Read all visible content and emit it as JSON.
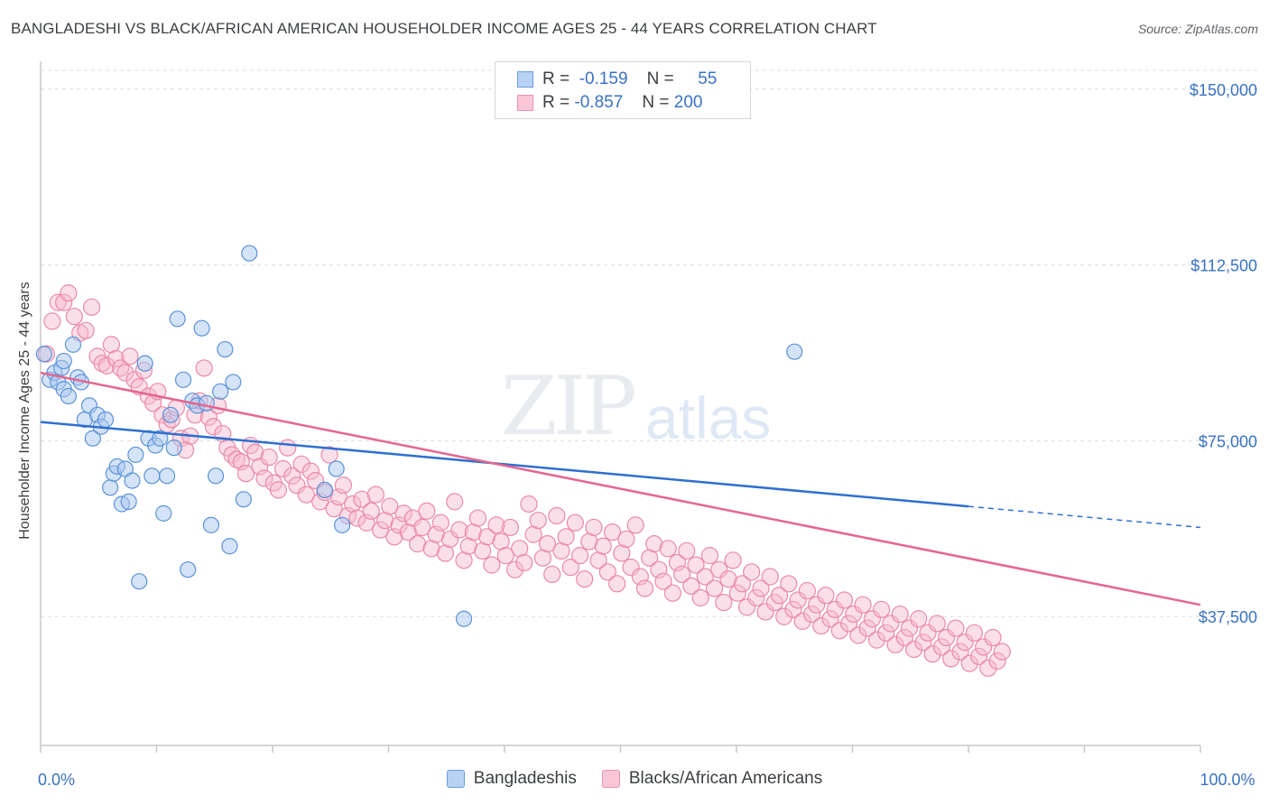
{
  "title": "BANGLADESHI VS BLACK/AFRICAN AMERICAN HOUSEHOLDER INCOME AGES 25 - 44 YEARS CORRELATION CHART",
  "source": "Source: ZipAtlas.com",
  "watermark": {
    "zip": "ZIP",
    "atlas": "atlas"
  },
  "legend_top": {
    "rows": [
      {
        "r_label": "R =",
        "r_value": "-0.159",
        "n_label": "N =",
        "n_value": "55"
      },
      {
        "r_label": "R =",
        "r_value": "-0.857",
        "n_label": "N =",
        "n_value": "200"
      }
    ]
  },
  "legend_bottom": [
    "Bangladeshis",
    "Blacks/African Americans"
  ],
  "colors": {
    "blue_fill": "#a9c8f0",
    "blue_stroke": "#5b93d8",
    "blue_line": "#2f6fd0",
    "pink_fill": "#f7b8cc",
    "pink_stroke": "#e989a9",
    "pink_line": "#e5658f",
    "tick_text": "#3a72c4",
    "grid": "#dcdcdc"
  },
  "chart_data": {
    "type": "scatter",
    "title": "BANGLADESHI VS BLACK/AFRICAN AMERICAN HOUSEHOLDER INCOME AGES 25 - 44 YEARS CORRELATION CHART",
    "xlabel": "",
    "ylabel": "Householder Income Ages 25 - 44 years",
    "xlim": [
      0,
      100
    ],
    "ylim": [
      10000,
      154000
    ],
    "x_tick_labels": [
      {
        "value": 0,
        "label": "0.0%"
      },
      {
        "value": 100,
        "label": "100.0%"
      }
    ],
    "y_ticks": [
      {
        "value": 150000,
        "label": "$150,000"
      },
      {
        "value": 112500,
        "label": "$112,500"
      },
      {
        "value": 75000,
        "label": "$75,000"
      },
      {
        "value": 37500,
        "label": "$37,500"
      }
    ],
    "grid": true,
    "legend_position": "bottom",
    "series": [
      {
        "name": "Bangladeshis",
        "r": -0.159,
        "n": 55,
        "trend": {
          "x0": 0,
          "y0": 79000,
          "x1": 80,
          "y1": 61000,
          "dashed_to_x": 100,
          "dashed_to_y": 56500
        },
        "points": [
          [
            0.3,
            93500
          ],
          [
            0.8,
            88000
          ],
          [
            1.2,
            89500
          ],
          [
            1.5,
            87500
          ],
          [
            1.8,
            90500
          ],
          [
            2.0,
            86000
          ],
          [
            2.4,
            84500
          ],
          [
            2.8,
            95500
          ],
          [
            3.2,
            88500
          ],
          [
            3.5,
            87500
          ],
          [
            3.8,
            79500
          ],
          [
            4.2,
            82500
          ],
          [
            4.5,
            75500
          ],
          [
            4.9,
            80500
          ],
          [
            5.2,
            78000
          ],
          [
            5.6,
            79500
          ],
          [
            6.0,
            65000
          ],
          [
            6.3,
            68000
          ],
          [
            6.6,
            69500
          ],
          [
            7.0,
            61500
          ],
          [
            7.3,
            69000
          ],
          [
            7.6,
            62000
          ],
          [
            7.9,
            66500
          ],
          [
            8.2,
            72000
          ],
          [
            8.5,
            45000
          ],
          [
            9.0,
            91500
          ],
          [
            9.3,
            75500
          ],
          [
            9.6,
            67500
          ],
          [
            9.9,
            74000
          ],
          [
            10.3,
            75500
          ],
          [
            10.6,
            59500
          ],
          [
            10.9,
            67500
          ],
          [
            11.2,
            80500
          ],
          [
            11.5,
            73500
          ],
          [
            11.8,
            101000
          ],
          [
            12.3,
            88000
          ],
          [
            12.7,
            47500
          ],
          [
            13.1,
            83500
          ],
          [
            13.5,
            82500
          ],
          [
            13.9,
            99000
          ],
          [
            14.3,
            83000
          ],
          [
            14.7,
            57000
          ],
          [
            15.1,
            67500
          ],
          [
            15.5,
            85500
          ],
          [
            15.9,
            94500
          ],
          [
            16.3,
            52500
          ],
          [
            16.6,
            87500
          ],
          [
            17.5,
            62500
          ],
          [
            18.0,
            115000
          ],
          [
            24.5,
            64500
          ],
          [
            25.5,
            69000
          ],
          [
            26.0,
            57000
          ],
          [
            36.5,
            37000
          ],
          [
            65.0,
            94000
          ],
          [
            2.0,
            92000
          ]
        ]
      },
      {
        "name": "Blacks/African Americans",
        "r": -0.857,
        "n": 200,
        "trend": {
          "x0": 0,
          "y0": 89500,
          "x1": 100,
          "y1": 40000
        },
        "points": [
          [
            0.5,
            93500
          ],
          [
            1.0,
            100500
          ],
          [
            1.5,
            104500
          ],
          [
            2.0,
            104500
          ],
          [
            2.4,
            106500
          ],
          [
            2.9,
            101500
          ],
          [
            3.4,
            98000
          ],
          [
            3.9,
            98500
          ],
          [
            4.4,
            103500
          ],
          [
            4.9,
            93000
          ],
          [
            5.3,
            91500
          ],
          [
            5.7,
            91000
          ],
          [
            6.1,
            95500
          ],
          [
            6.5,
            92500
          ],
          [
            6.9,
            90500
          ],
          [
            7.3,
            89500
          ],
          [
            7.7,
            93000
          ],
          [
            8.1,
            88000
          ],
          [
            8.5,
            86500
          ],
          [
            8.9,
            90000
          ],
          [
            9.3,
            84500
          ],
          [
            9.7,
            83000
          ],
          [
            10.1,
            85500
          ],
          [
            10.5,
            80500
          ],
          [
            10.9,
            78500
          ],
          [
            11.3,
            79500
          ],
          [
            11.7,
            82000
          ],
          [
            12.1,
            75500
          ],
          [
            12.5,
            73000
          ],
          [
            12.9,
            76000
          ],
          [
            13.3,
            80500
          ],
          [
            13.7,
            83500
          ],
          [
            14.1,
            90500
          ],
          [
            14.5,
            80000
          ],
          [
            14.9,
            78000
          ],
          [
            15.3,
            82500
          ],
          [
            15.7,
            76500
          ],
          [
            16.1,
            73500
          ],
          [
            16.5,
            72000
          ],
          [
            16.9,
            71000
          ],
          [
            17.3,
            70500
          ],
          [
            17.7,
            68000
          ],
          [
            18.1,
            74000
          ],
          [
            18.5,
            72500
          ],
          [
            18.9,
            69500
          ],
          [
            19.3,
            67000
          ],
          [
            19.7,
            71500
          ],
          [
            20.1,
            66000
          ],
          [
            20.5,
            64500
          ],
          [
            20.9,
            69000
          ],
          [
            21.3,
            73500
          ],
          [
            21.7,
            67500
          ],
          [
            22.1,
            65500
          ],
          [
            22.5,
            70000
          ],
          [
            22.9,
            63500
          ],
          [
            23.3,
            68500
          ],
          [
            23.7,
            66500
          ],
          [
            24.1,
            62000
          ],
          [
            24.5,
            64000
          ],
          [
            24.9,
            72000
          ],
          [
            25.3,
            60500
          ],
          [
            25.7,
            63000
          ],
          [
            26.1,
            65500
          ],
          [
            26.5,
            59000
          ],
          [
            26.9,
            61500
          ],
          [
            27.3,
            58500
          ],
          [
            27.7,
            62500
          ],
          [
            28.1,
            57500
          ],
          [
            28.5,
            60000
          ],
          [
            28.9,
            63500
          ],
          [
            29.3,
            56000
          ],
          [
            29.7,
            58000
          ],
          [
            30.1,
            61000
          ],
          [
            30.5,
            54500
          ],
          [
            30.9,
            57000
          ],
          [
            31.3,
            59500
          ],
          [
            31.7,
            55500
          ],
          [
            32.1,
            58500
          ],
          [
            32.5,
            53000
          ],
          [
            32.9,
            56500
          ],
          [
            33.3,
            60000
          ],
          [
            33.7,
            52000
          ],
          [
            34.1,
            55000
          ],
          [
            34.5,
            57500
          ],
          [
            34.9,
            51000
          ],
          [
            35.3,
            54000
          ],
          [
            35.7,
            62000
          ],
          [
            36.1,
            56000
          ],
          [
            36.5,
            49500
          ],
          [
            36.9,
            52500
          ],
          [
            37.3,
            55500
          ],
          [
            37.7,
            58500
          ],
          [
            38.1,
            51500
          ],
          [
            38.5,
            54500
          ],
          [
            38.9,
            48500
          ],
          [
            39.3,
            57000
          ],
          [
            39.7,
            53500
          ],
          [
            40.1,
            50500
          ],
          [
            40.5,
            56500
          ],
          [
            40.9,
            47500
          ],
          [
            41.3,
            52000
          ],
          [
            41.7,
            49000
          ],
          [
            42.1,
            61500
          ],
          [
            42.5,
            55000
          ],
          [
            42.9,
            58000
          ],
          [
            43.3,
            50000
          ],
          [
            43.7,
            53000
          ],
          [
            44.1,
            46500
          ],
          [
            44.5,
            59000
          ],
          [
            44.9,
            51500
          ],
          [
            45.3,
            54500
          ],
          [
            45.7,
            48000
          ],
          [
            46.1,
            57500
          ],
          [
            46.5,
            50500
          ],
          [
            46.9,
            45500
          ],
          [
            47.3,
            53500
          ],
          [
            47.7,
            56500
          ],
          [
            48.1,
            49500
          ],
          [
            48.5,
            52500
          ],
          [
            48.9,
            47000
          ],
          [
            49.3,
            55500
          ],
          [
            49.7,
            44500
          ],
          [
            50.1,
            51000
          ],
          [
            50.5,
            54000
          ],
          [
            50.9,
            48000
          ],
          [
            51.3,
            57000
          ],
          [
            51.7,
            46000
          ],
          [
            52.1,
            43500
          ],
          [
            52.5,
            50000
          ],
          [
            52.9,
            53000
          ],
          [
            53.3,
            47500
          ],
          [
            53.7,
            45000
          ],
          [
            54.1,
            52000
          ],
          [
            54.5,
            42500
          ],
          [
            54.9,
            49000
          ],
          [
            55.3,
            46500
          ],
          [
            55.7,
            51500
          ],
          [
            56.1,
            44000
          ],
          [
            56.5,
            48500
          ],
          [
            56.9,
            41500
          ],
          [
            57.3,
            46000
          ],
          [
            57.7,
            50500
          ],
          [
            58.1,
            43500
          ],
          [
            58.5,
            47500
          ],
          [
            58.9,
            40500
          ],
          [
            59.3,
            45500
          ],
          [
            59.7,
            49500
          ],
          [
            60.1,
            42500
          ],
          [
            60.5,
            44500
          ],
          [
            60.9,
            39500
          ],
          [
            61.3,
            47000
          ],
          [
            61.7,
            41500
          ],
          [
            62.1,
            43500
          ],
          [
            62.5,
            38500
          ],
          [
            62.9,
            46000
          ],
          [
            63.3,
            40500
          ],
          [
            63.7,
            42000
          ],
          [
            64.1,
            37500
          ],
          [
            64.5,
            44500
          ],
          [
            64.9,
            39000
          ],
          [
            65.3,
            41000
          ],
          [
            65.7,
            36500
          ],
          [
            66.1,
            43000
          ],
          [
            66.5,
            38000
          ],
          [
            66.9,
            40000
          ],
          [
            67.3,
            35500
          ],
          [
            67.7,
            42000
          ],
          [
            68.1,
            37000
          ],
          [
            68.5,
            39000
          ],
          [
            68.9,
            34500
          ],
          [
            69.3,
            41000
          ],
          [
            69.7,
            36000
          ],
          [
            70.1,
            38000
          ],
          [
            70.5,
            33500
          ],
          [
            70.9,
            40000
          ],
          [
            71.3,
            35000
          ],
          [
            71.7,
            37000
          ],
          [
            72.1,
            32500
          ],
          [
            72.5,
            39000
          ],
          [
            72.9,
            34000
          ],
          [
            73.3,
            36000
          ],
          [
            73.7,
            31500
          ],
          [
            74.1,
            38000
          ],
          [
            74.5,
            33000
          ],
          [
            74.9,
            35000
          ],
          [
            75.3,
            30500
          ],
          [
            75.7,
            37000
          ],
          [
            76.1,
            32000
          ],
          [
            76.5,
            34000
          ],
          [
            76.9,
            29500
          ],
          [
            77.3,
            36000
          ],
          [
            77.7,
            31000
          ],
          [
            78.1,
            33000
          ],
          [
            78.5,
            28500
          ],
          [
            78.9,
            35000
          ],
          [
            79.3,
            30000
          ],
          [
            79.7,
            32000
          ],
          [
            80.1,
            27500
          ],
          [
            80.5,
            34000
          ],
          [
            80.9,
            29000
          ],
          [
            81.3,
            31000
          ],
          [
            81.7,
            26500
          ],
          [
            82.1,
            33000
          ],
          [
            82.5,
            28000
          ],
          [
            82.9,
            30000
          ]
        ]
      }
    ]
  }
}
